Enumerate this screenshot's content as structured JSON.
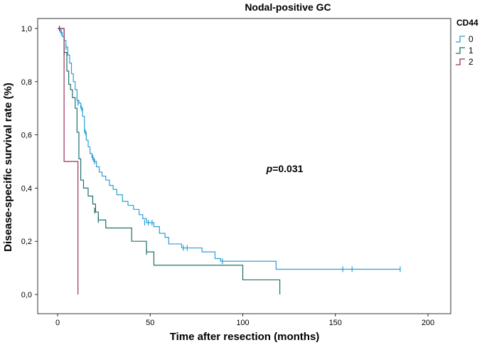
{
  "chart_data": {
    "type": "line",
    "subtype": "kaplan-meier",
    "title": "Nodal-positive GC",
    "xlabel": "Time after resection (months)",
    "ylabel": "Disease-specific survival rate (%)",
    "xlim": [
      0,
      200
    ],
    "ylim": [
      0,
      1
    ],
    "xticks": [
      0,
      50,
      100,
      150,
      200
    ],
    "xtick_labels": [
      "0",
      "50",
      "100",
      "150",
      "200"
    ],
    "yticks": [
      0,
      0.2,
      0.4,
      0.6,
      0.8,
      1.0
    ],
    "ytick_labels": [
      "0,0",
      "0,2",
      "0,4",
      "0,6",
      "0,8",
      "1,0"
    ],
    "grid": false,
    "legend": {
      "title": "CD44",
      "position": "top-right"
    },
    "annotation": {
      "prefix": "p",
      "text": "=0.031",
      "x": 125,
      "y": 0.46
    },
    "series": [
      {
        "name": "0",
        "color": "#2a9fd6",
        "steps": [
          [
            0,
            1.0
          ],
          [
            1.5,
            0.985
          ],
          [
            2.5,
            0.97
          ],
          [
            3.5,
            0.955
          ],
          [
            4.5,
            0.93
          ],
          [
            5.5,
            0.9
          ],
          [
            6.5,
            0.87
          ],
          [
            7.5,
            0.83
          ],
          [
            8.5,
            0.8
          ],
          [
            9.5,
            0.77
          ],
          [
            10.5,
            0.73
          ],
          [
            11.5,
            0.72
          ],
          [
            12.5,
            0.7
          ],
          [
            13.5,
            0.67
          ],
          [
            14.5,
            0.61
          ],
          [
            15.5,
            0.58
          ],
          [
            16.5,
            0.555
          ],
          [
            17.5,
            0.53
          ],
          [
            18.5,
            0.515
          ],
          [
            19.5,
            0.5
          ],
          [
            21,
            0.48
          ],
          [
            22.5,
            0.46
          ],
          [
            24,
            0.445
          ],
          [
            26,
            0.43
          ],
          [
            28,
            0.41
          ],
          [
            30,
            0.395
          ],
          [
            32,
            0.375
          ],
          [
            35,
            0.35
          ],
          [
            38,
            0.335
          ],
          [
            41,
            0.32
          ],
          [
            44,
            0.3
          ],
          [
            46,
            0.285
          ],
          [
            48,
            0.27
          ],
          [
            52,
            0.255
          ],
          [
            55,
            0.23
          ],
          [
            58,
            0.215
          ],
          [
            60,
            0.19
          ],
          [
            67,
            0.175
          ],
          [
            78,
            0.16
          ],
          [
            85,
            0.135
          ],
          [
            88,
            0.125
          ],
          [
            118,
            0.095
          ],
          [
            185,
            0.095
          ]
        ],
        "censors": [
          [
            2,
            0.985
          ],
          [
            4.5,
            0.93
          ],
          [
            11,
            0.72
          ],
          [
            13,
            0.7
          ],
          [
            15,
            0.61
          ],
          [
            19,
            0.515
          ],
          [
            20,
            0.5
          ],
          [
            47,
            0.27
          ],
          [
            49,
            0.27
          ],
          [
            51,
            0.27
          ],
          [
            68,
            0.175
          ],
          [
            70,
            0.175
          ],
          [
            89,
            0.125
          ],
          [
            154,
            0.095
          ],
          [
            159,
            0.095
          ],
          [
            185,
            0.095
          ]
        ]
      },
      {
        "name": "1",
        "color": "#1d6f6a",
        "steps": [
          [
            0,
            1.0
          ],
          [
            3.5,
            0.91
          ],
          [
            5,
            0.84
          ],
          [
            6,
            0.79
          ],
          [
            7,
            0.77
          ],
          [
            8,
            0.74
          ],
          [
            9.5,
            0.7
          ],
          [
            10.5,
            0.61
          ],
          [
            11.5,
            0.51
          ],
          [
            12.5,
            0.43
          ],
          [
            14,
            0.4
          ],
          [
            16.5,
            0.37
          ],
          [
            19,
            0.34
          ],
          [
            20.5,
            0.31
          ],
          [
            22,
            0.28
          ],
          [
            26,
            0.25
          ],
          [
            33,
            0.25
          ],
          [
            40,
            0.2
          ],
          [
            48,
            0.16
          ],
          [
            52,
            0.11
          ],
          [
            100,
            0.055
          ],
          [
            120,
            0.0
          ]
        ],
        "censors": [
          [
            3.5,
            0.91
          ],
          [
            20,
            0.315
          ],
          [
            22,
            0.28
          ],
          [
            48,
            0.16
          ]
        ]
      },
      {
        "name": "2",
        "color": "#9a2f57",
        "steps": [
          [
            0,
            1.0
          ],
          [
            3.5,
            0.5
          ],
          [
            11,
            0.5
          ],
          [
            11,
            0.0
          ]
        ],
        "censors": [
          [
            1,
            1.0
          ]
        ]
      }
    ]
  }
}
